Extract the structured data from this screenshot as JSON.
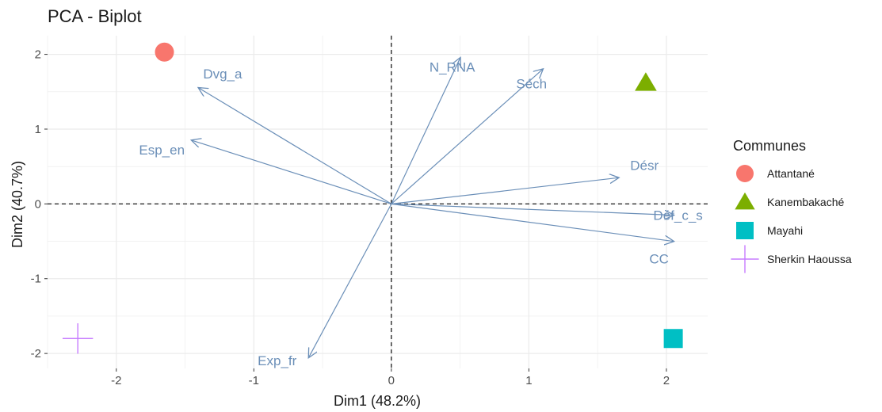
{
  "chart_data": {
    "type": "scatter",
    "title": "PCA - Biplot",
    "xlabel": "Dim1 (48.2%)",
    "ylabel": "Dim2 (40.7%)",
    "xlim": [
      -2.5,
      2.3
    ],
    "ylim": [
      -2.2,
      2.25
    ],
    "x_ticks": [
      -2,
      -1,
      0,
      1,
      2
    ],
    "y_ticks": [
      -2,
      -1,
      0,
      1,
      2
    ],
    "grid": true,
    "reference_lines": {
      "x": 0,
      "y": 0,
      "style": "dashed"
    },
    "arrow_color": "#6b8fb8",
    "variables": [
      {
        "name": "N_RNA",
        "x": 0.5,
        "y": 1.95
      },
      {
        "name": "Séch",
        "x": 1.1,
        "y": 1.8
      },
      {
        "name": "Dvg_a",
        "x": -1.4,
        "y": 1.55
      },
      {
        "name": "Esp_en",
        "x": -1.45,
        "y": 0.85
      },
      {
        "name": "Désr",
        "x": 1.65,
        "y": 0.35
      },
      {
        "name": "Déf_c_s",
        "x": 2.05,
        "y": -0.15
      },
      {
        "name": "CC",
        "x": 2.05,
        "y": -0.5
      },
      {
        "name": "Exp_fr",
        "x": -0.6,
        "y": -2.05
      }
    ],
    "legend": {
      "title": "Communes",
      "position": "right",
      "entries": [
        {
          "name": "Attantané",
          "shape": "circle",
          "color": "#F8766D"
        },
        {
          "name": "Kanembakaché",
          "shape": "triangle",
          "color": "#7CAE00"
        },
        {
          "name": "Mayahi",
          "shape": "square",
          "color": "#00BFC4"
        },
        {
          "name": "Sherkin Haoussa",
          "shape": "cross",
          "color": "#C77CFF"
        }
      ]
    },
    "series": [
      {
        "name": "Attantané",
        "x": -1.65,
        "y": 2.03
      },
      {
        "name": "Kanembakaché",
        "x": 1.85,
        "y": 1.62
      },
      {
        "name": "Mayahi",
        "x": 2.05,
        "y": -1.8
      },
      {
        "name": "Sherkin Haoussa",
        "x": -2.28,
        "y": -1.8
      }
    ]
  }
}
